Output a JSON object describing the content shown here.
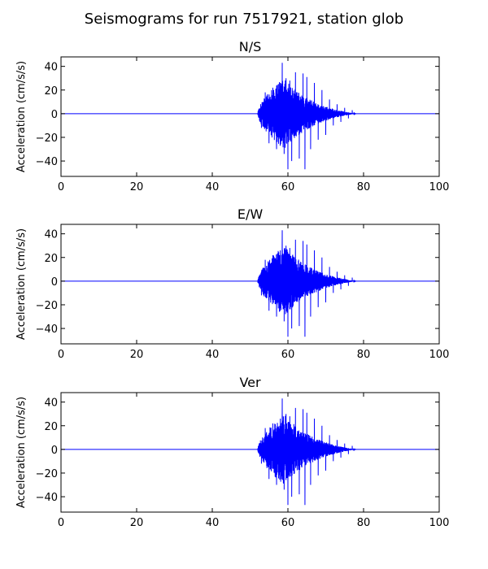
{
  "figure": {
    "suptitle": "Seismograms for run 7517921, station glob"
  },
  "chart_data": [
    {
      "type": "line",
      "title": "N/S",
      "xlabel": "",
      "ylabel": "Acceleration (cm/s/s)",
      "xlim": [
        0,
        100
      ],
      "ylim": [
        -53,
        48
      ],
      "xticks": [
        "0",
        "20",
        "40",
        "60",
        "80",
        "100"
      ],
      "yticks": [
        "40",
        "20",
        "0",
        "−20",
        "−40"
      ],
      "grid": false,
      "line_color": "#0000ff",
      "signal": {
        "onset": 52,
        "end": 78,
        "peak_time": 59,
        "peak_max": 43,
        "peak_min": -47,
        "baseline": 0
      },
      "x": [
        0,
        52,
        53,
        54,
        55,
        56,
        57,
        58,
        58.5,
        59,
        59.5,
        60,
        60.5,
        61,
        62,
        63,
        64,
        64.5,
        65,
        66,
        67,
        68,
        69,
        70,
        71,
        72,
        73,
        74,
        75,
        76,
        77,
        78,
        100
      ],
      "y": [
        0,
        0,
        -12,
        18,
        -25,
        22,
        -30,
        26,
        43,
        -34,
        30,
        -47,
        28,
        -40,
        35,
        -38,
        34,
        -47,
        31,
        -30,
        26,
        -22,
        20,
        -18,
        12,
        -10,
        8,
        -7,
        5,
        -4,
        3,
        0,
        0
      ]
    },
    {
      "type": "line",
      "title": "E/W",
      "xlabel": "",
      "ylabel": "Acceleration (cm/s/s)",
      "xlim": [
        0,
        100
      ],
      "ylim": [
        -53,
        48
      ],
      "xticks": [
        "0",
        "20",
        "40",
        "60",
        "80",
        "100"
      ],
      "yticks": [
        "40",
        "20",
        "0",
        "−20",
        "−40"
      ],
      "grid": false,
      "line_color": "#0000ff",
      "signal": {
        "onset": 52,
        "end": 78,
        "peak_time": 59,
        "peak_max": 43,
        "peak_min": -47,
        "baseline": 0
      },
      "x": [
        0,
        52,
        53,
        54,
        55,
        56,
        57,
        58,
        58.5,
        59,
        59.5,
        60,
        60.5,
        61,
        62,
        63,
        64,
        64.5,
        65,
        66,
        67,
        68,
        69,
        70,
        71,
        72,
        73,
        74,
        75,
        76,
        77,
        78,
        100
      ],
      "y": [
        0,
        0,
        -12,
        18,
        -25,
        22,
        -30,
        26,
        43,
        -34,
        30,
        -47,
        28,
        -40,
        35,
        -38,
        34,
        -47,
        31,
        -30,
        26,
        -22,
        20,
        -18,
        12,
        -10,
        8,
        -7,
        5,
        -4,
        3,
        0,
        0
      ]
    },
    {
      "type": "line",
      "title": "Ver",
      "xlabel": "",
      "ylabel": "Acceleration (cm/s/s)",
      "xlim": [
        0,
        100
      ],
      "ylim": [
        -53,
        48
      ],
      "xticks": [
        "0",
        "20",
        "40",
        "60",
        "80",
        "100"
      ],
      "yticks": [
        "40",
        "20",
        "0",
        "−20",
        "−40"
      ],
      "grid": false,
      "line_color": "#0000ff",
      "signal": {
        "onset": 52,
        "end": 78,
        "peak_time": 59,
        "peak_max": 43,
        "peak_min": -47,
        "baseline": 0
      },
      "x": [
        0,
        52,
        53,
        54,
        55,
        56,
        57,
        58,
        58.5,
        59,
        59.5,
        60,
        60.5,
        61,
        62,
        63,
        64,
        64.5,
        65,
        66,
        67,
        68,
        69,
        70,
        71,
        72,
        73,
        74,
        75,
        76,
        77,
        78,
        100
      ],
      "y": [
        0,
        0,
        -12,
        18,
        -25,
        22,
        -30,
        26,
        43,
        -34,
        30,
        -47,
        28,
        -40,
        35,
        -38,
        34,
        -47,
        31,
        -30,
        26,
        -22,
        20,
        -18,
        12,
        -10,
        8,
        -7,
        5,
        -4,
        3,
        0,
        0
      ]
    }
  ]
}
